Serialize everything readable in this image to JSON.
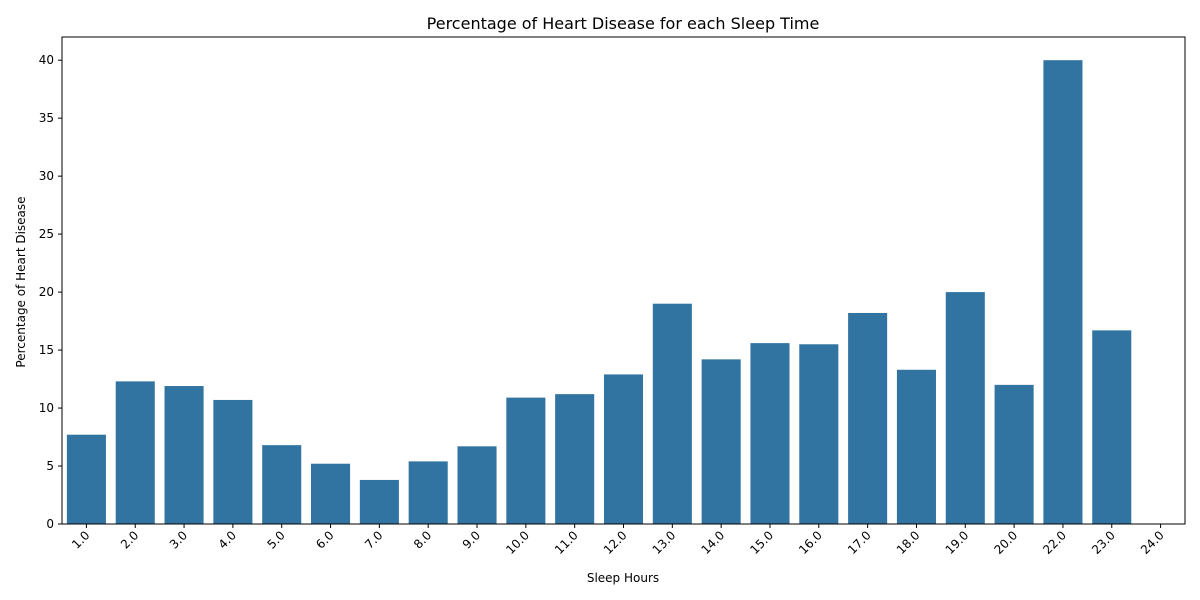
{
  "chart_data": {
    "type": "bar",
    "title": "Percentage of Heart Disease for each Sleep Time",
    "xlabel": "Sleep Hours",
    "ylabel": "Percentage of Heart Disease",
    "categories": [
      "1.0",
      "2.0",
      "3.0",
      "4.0",
      "5.0",
      "6.0",
      "7.0",
      "8.0",
      "9.0",
      "10.0",
      "11.0",
      "12.0",
      "13.0",
      "14.0",
      "15.0",
      "16.0",
      "17.0",
      "18.0",
      "19.0",
      "20.0",
      "22.0",
      "23.0",
      "24.0"
    ],
    "values": [
      7.7,
      12.3,
      11.9,
      10.7,
      6.8,
      5.2,
      3.8,
      5.4,
      6.7,
      10.9,
      11.2,
      12.9,
      19.0,
      14.2,
      15.6,
      15.5,
      18.2,
      13.3,
      20.0,
      12.0,
      40.0,
      16.7,
      0.0
    ],
    "ylim": [
      0,
      42
    ],
    "yticks": [
      0,
      5,
      10,
      15,
      20,
      25,
      30,
      35,
      40
    ],
    "bar_color": "#3274a1",
    "grid": false,
    "legend": "none"
  }
}
